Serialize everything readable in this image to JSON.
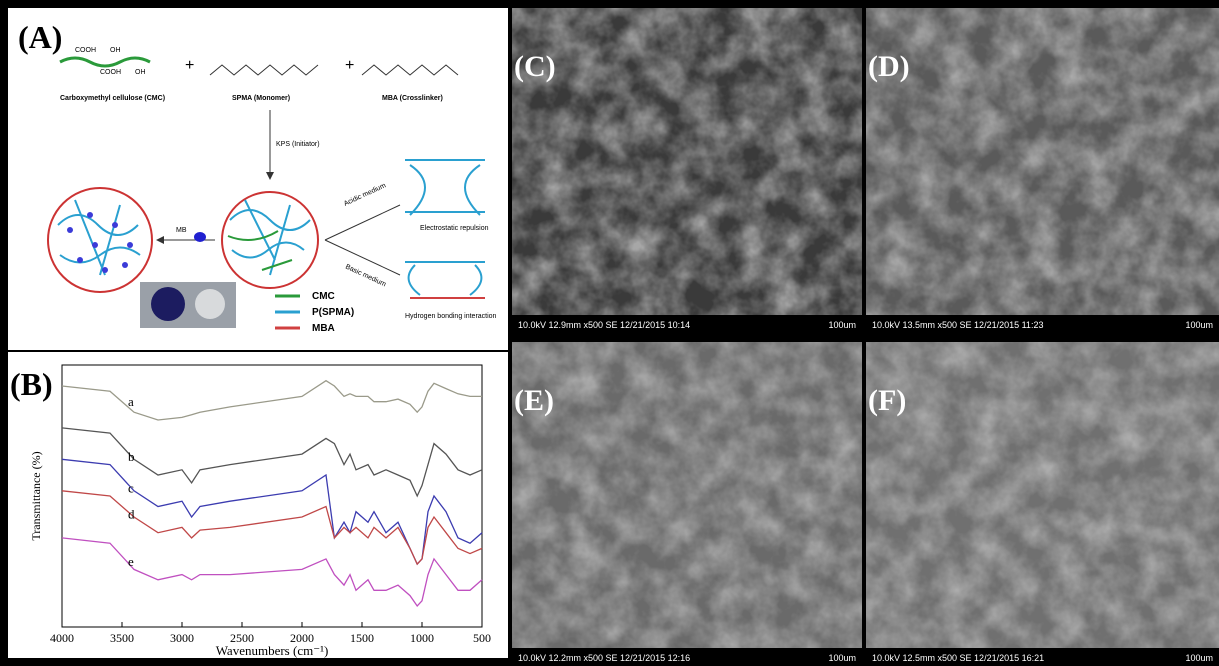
{
  "panel_a": {
    "label": "(A)",
    "reactants": {
      "cmc": "Carboxymethyl cellulose (CMC)",
      "spma": "SPMA (Monomer)",
      "mba": "MBA (Crosslinker)",
      "plus": "+"
    },
    "groups": {
      "cooh": "COOH",
      "oh": "OH"
    },
    "initiator": "KPS (Initiator)",
    "dye": "MB",
    "media": {
      "acidic": "Acidic medium",
      "basic": "Basic medium"
    },
    "effects": {
      "repulsion": "Electrostatic repulsion",
      "hbond": "Hydrogen bonding interaction"
    },
    "legend": [
      "CMC",
      "P(SPMA)",
      "MBA"
    ]
  },
  "chart_data": {
    "type": "line",
    "label": "(B)",
    "x_label": "Wavenumbers (cm⁻¹)",
    "y_label": "Transmittance (%)",
    "x": [
      4000,
      3600,
      3400,
      3200,
      3000,
      2920,
      2850,
      2600,
      2000,
      1800,
      1730,
      1650,
      1600,
      1550,
      1450,
      1400,
      1300,
      1200,
      1100,
      1040,
      1000,
      950,
      900,
      800,
      700,
      600,
      500
    ],
    "xlim": [
      4000,
      500
    ],
    "xticks": [
      4000,
      3500,
      3000,
      2500,
      2000,
      1500,
      1000,
      500
    ],
    "ylim": [
      0,
      100
    ],
    "series": [
      {
        "name": "a",
        "color": "#9a9a8a",
        "values": [
          92,
          90,
          82,
          79,
          80,
          81,
          82,
          84,
          88,
          94,
          92,
          88,
          89,
          88,
          88,
          86,
          86,
          87,
          85,
          82,
          84,
          90,
          93,
          91,
          89,
          88,
          88
        ]
      },
      {
        "name": "b",
        "color": "#555555",
        "values": [
          76,
          74,
          64,
          58,
          60,
          55,
          60,
          62,
          66,
          72,
          70,
          62,
          66,
          60,
          62,
          58,
          60,
          58,
          56,
          50,
          54,
          62,
          70,
          66,
          60,
          58,
          60
        ]
      },
      {
        "name": "c",
        "color": "#3c3cb0",
        "values": [
          64,
          62,
          52,
          46,
          48,
          42,
          46,
          48,
          52,
          58,
          34,
          40,
          36,
          44,
          40,
          44,
          36,
          40,
          30,
          24,
          26,
          44,
          50,
          44,
          34,
          32,
          36
        ]
      },
      {
        "name": "d",
        "color": "#c04848",
        "values": [
          52,
          50,
          42,
          36,
          38,
          34,
          37,
          38,
          42,
          46,
          34,
          38,
          36,
          38,
          34,
          38,
          34,
          38,
          30,
          24,
          26,
          38,
          42,
          36,
          30,
          28,
          30
        ]
      },
      {
        "name": "e",
        "color": "#c050c0",
        "values": [
          34,
          32,
          22,
          18,
          20,
          18,
          20,
          20,
          22,
          26,
          20,
          16,
          20,
          14,
          18,
          14,
          14,
          16,
          12,
          8,
          10,
          20,
          26,
          20,
          14,
          14,
          18
        ]
      }
    ]
  },
  "sem_panels": [
    {
      "label": "(C)",
      "info": "10.0kV 12.9mm x500 SE 12/21/2015 10:14",
      "scale": "100um"
    },
    {
      "label": "(D)",
      "info": "10.0kV 13.5mm x500 SE 12/21/2015 11:23",
      "scale": "100um"
    },
    {
      "label": "(E)",
      "info": "10.0kV 12.2mm x500 SE 12/21/2015 12:16",
      "scale": "100um"
    },
    {
      "label": "(F)",
      "info": "10.0kV 12.5mm x500 SE 12/21/2015 16:21",
      "scale": "100um"
    }
  ]
}
